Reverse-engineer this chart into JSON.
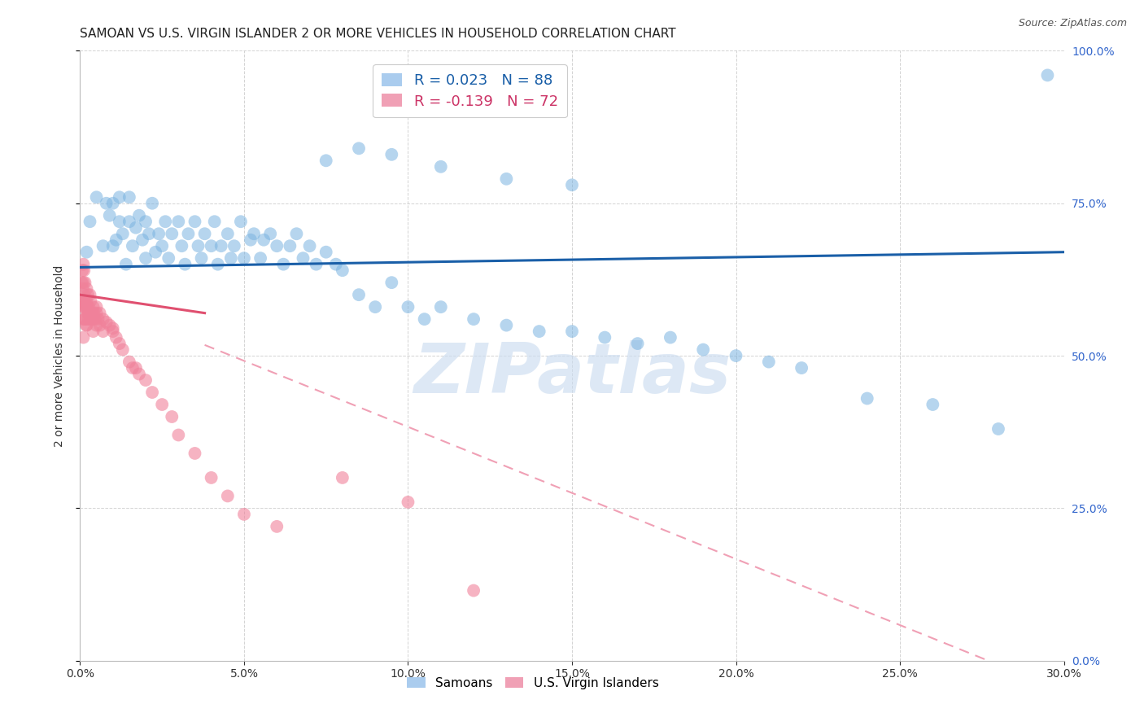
{
  "title": "SAMOAN VS U.S. VIRGIN ISLANDER 2 OR MORE VEHICLES IN HOUSEHOLD CORRELATION CHART",
  "source": "Source: ZipAtlas.com",
  "ylabel": "2 or more Vehicles in Household",
  "xlim": [
    0.0,
    0.3
  ],
  "ylim": [
    0.0,
    1.0
  ],
  "samoan_color": "#7ab3e0",
  "virgin_color": "#f0819a",
  "samoan_line_color": "#1a5fa8",
  "virgin_line_solid_color": "#e05070",
  "virgin_line_dash_color": "#f0a0b5",
  "watermark": "ZIPatlas",
  "title_fontsize": 11,
  "axis_label_fontsize": 10,
  "tick_fontsize": 10,
  "right_tick_color": "#3366cc",
  "samoan_R": 0.023,
  "samoan_N": 88,
  "virgin_R": -0.139,
  "virgin_N": 72,
  "samoan_x": [
    0.002,
    0.003,
    0.005,
    0.007,
    0.008,
    0.009,
    0.01,
    0.01,
    0.011,
    0.012,
    0.012,
    0.013,
    0.014,
    0.015,
    0.015,
    0.016,
    0.017,
    0.018,
    0.019,
    0.02,
    0.02,
    0.021,
    0.022,
    0.023,
    0.024,
    0.025,
    0.026,
    0.027,
    0.028,
    0.03,
    0.031,
    0.032,
    0.033,
    0.035,
    0.036,
    0.037,
    0.038,
    0.04,
    0.041,
    0.042,
    0.043,
    0.045,
    0.046,
    0.047,
    0.049,
    0.05,
    0.052,
    0.053,
    0.055,
    0.056,
    0.058,
    0.06,
    0.062,
    0.064,
    0.066,
    0.068,
    0.07,
    0.072,
    0.075,
    0.078,
    0.08,
    0.085,
    0.09,
    0.095,
    0.1,
    0.105,
    0.11,
    0.12,
    0.13,
    0.14,
    0.15,
    0.16,
    0.17,
    0.18,
    0.19,
    0.2,
    0.21,
    0.22,
    0.24,
    0.26,
    0.28,
    0.11,
    0.13,
    0.15,
    0.075,
    0.085,
    0.095,
    0.295
  ],
  "samoan_y": [
    0.67,
    0.72,
    0.76,
    0.68,
    0.75,
    0.73,
    0.68,
    0.75,
    0.69,
    0.72,
    0.76,
    0.7,
    0.65,
    0.72,
    0.76,
    0.68,
    0.71,
    0.73,
    0.69,
    0.66,
    0.72,
    0.7,
    0.75,
    0.67,
    0.7,
    0.68,
    0.72,
    0.66,
    0.7,
    0.72,
    0.68,
    0.65,
    0.7,
    0.72,
    0.68,
    0.66,
    0.7,
    0.68,
    0.72,
    0.65,
    0.68,
    0.7,
    0.66,
    0.68,
    0.72,
    0.66,
    0.69,
    0.7,
    0.66,
    0.69,
    0.7,
    0.68,
    0.65,
    0.68,
    0.7,
    0.66,
    0.68,
    0.65,
    0.67,
    0.65,
    0.64,
    0.6,
    0.58,
    0.62,
    0.58,
    0.56,
    0.58,
    0.56,
    0.55,
    0.54,
    0.54,
    0.53,
    0.52,
    0.53,
    0.51,
    0.5,
    0.49,
    0.48,
    0.43,
    0.42,
    0.38,
    0.81,
    0.79,
    0.78,
    0.82,
    0.84,
    0.83,
    0.96
  ],
  "virgin_x": [
    0.0005,
    0.0006,
    0.0007,
    0.0008,
    0.0009,
    0.001,
    0.001,
    0.001,
    0.001,
    0.001,
    0.001,
    0.0012,
    0.0013,
    0.0014,
    0.0015,
    0.0016,
    0.0017,
    0.0018,
    0.0019,
    0.002,
    0.002,
    0.002,
    0.002,
    0.0022,
    0.0023,
    0.0024,
    0.0025,
    0.0026,
    0.0027,
    0.003,
    0.003,
    0.003,
    0.0032,
    0.0035,
    0.0038,
    0.004,
    0.004,
    0.004,
    0.0042,
    0.0045,
    0.005,
    0.005,
    0.005,
    0.0055,
    0.006,
    0.006,
    0.007,
    0.007,
    0.008,
    0.009,
    0.01,
    0.01,
    0.011,
    0.012,
    0.013,
    0.015,
    0.016,
    0.017,
    0.018,
    0.02,
    0.022,
    0.025,
    0.028,
    0.03,
    0.035,
    0.04,
    0.045,
    0.05,
    0.06,
    0.08,
    0.1,
    0.12
  ],
  "virgin_y": [
    0.62,
    0.59,
    0.64,
    0.61,
    0.58,
    0.65,
    0.62,
    0.59,
    0.56,
    0.53,
    0.58,
    0.64,
    0.6,
    0.56,
    0.62,
    0.59,
    0.56,
    0.58,
    0.55,
    0.61,
    0.58,
    0.55,
    0.59,
    0.58,
    0.57,
    0.6,
    0.57,
    0.56,
    0.58,
    0.6,
    0.57,
    0.56,
    0.59,
    0.56,
    0.57,
    0.58,
    0.56,
    0.54,
    0.57,
    0.56,
    0.57,
    0.55,
    0.58,
    0.56,
    0.57,
    0.55,
    0.56,
    0.54,
    0.555,
    0.55,
    0.545,
    0.54,
    0.53,
    0.52,
    0.51,
    0.49,
    0.48,
    0.48,
    0.47,
    0.46,
    0.44,
    0.42,
    0.4,
    0.37,
    0.34,
    0.3,
    0.27,
    0.24,
    0.22,
    0.3,
    0.26,
    0.115
  ]
}
